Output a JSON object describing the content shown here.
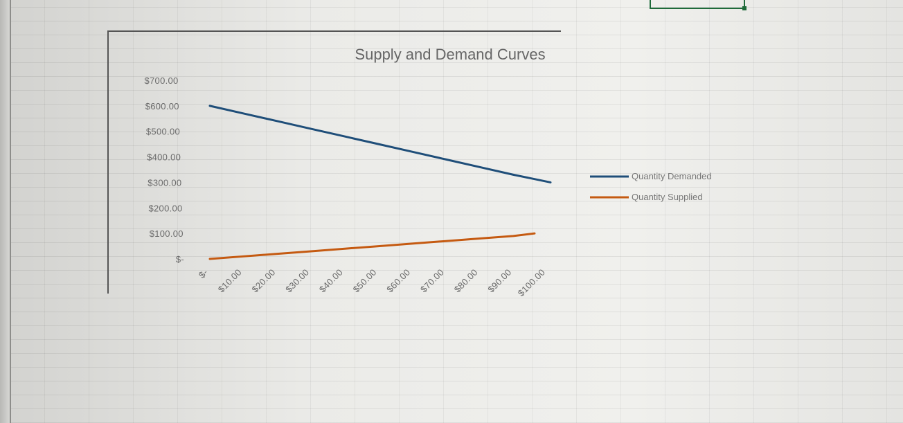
{
  "chart_data": {
    "type": "line",
    "title": "Supply and Demand Curves",
    "xlabel": "",
    "ylabel": "",
    "categories": [
      "$-",
      "$10.00",
      "$20.00",
      "$30.00",
      "$40.00",
      "$50.00",
      "$60.00",
      "$70.00",
      "$80.00",
      "$90.00",
      "$100.00"
    ],
    "y_ticks": [
      "$-",
      "$100.00",
      "$200.00",
      "$300.00",
      "$400.00",
      "$500.00",
      "$600.00",
      "$700.00"
    ],
    "ylim": [
      0,
      700
    ],
    "grid": false,
    "legend_position": "right",
    "series": [
      {
        "name": "Quantity Demanded",
        "color": "#1f4e79",
        "values": [
          600,
          570,
          540,
          510,
          480,
          450,
          420,
          390,
          360,
          330,
          300
        ]
      },
      {
        "name": "Quantity Supplied",
        "color": "#c55a11",
        "values": [
          0,
          10,
          20,
          30,
          40,
          50,
          60,
          70,
          80,
          90,
          100
        ]
      }
    ]
  }
}
